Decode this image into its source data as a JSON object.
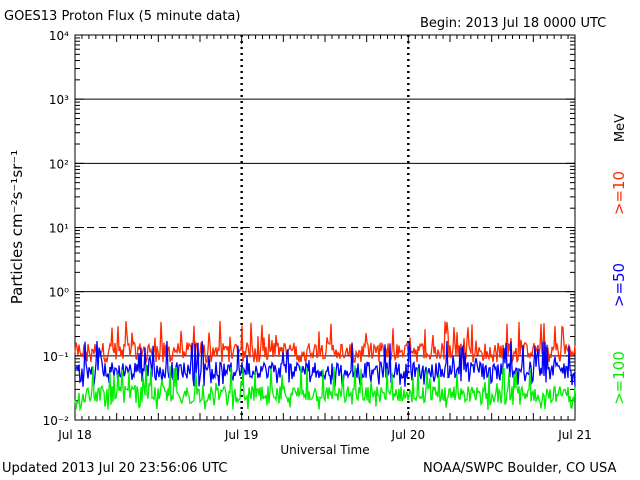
{
  "header": {
    "title": "GOES13 Proton Flux (5 minute data)",
    "begin": "Begin: 2013 Jul 18 0000 UTC"
  },
  "footer": {
    "updated": "Updated 2013 Jul 20 23:56:06 UTC",
    "credit": "NOAA/SWPC Boulder, CO USA"
  },
  "chart_data": {
    "type": "line",
    "title": "GOES13 Proton Flux (5 minute data)",
    "xlabel": "Universal Time",
    "ylabel": "Particles cm⁻²s⁻¹sr⁻¹",
    "y_scale": "log",
    "ylim": [
      0.01,
      10000
    ],
    "x_range_days": [
      0,
      3
    ],
    "x_ticks": [
      "Jul 18",
      "Jul 19",
      "Jul 20",
      "Jul 21"
    ],
    "y_ticks": [
      "10⁻²",
      "10⁻¹",
      "10⁰",
      "10¹",
      "10²",
      "10³",
      "10⁴"
    ],
    "dashed_threshold": 10,
    "energy_unit": "MeV",
    "grid": true,
    "series": [
      {
        "name": ">=10",
        "color": "#ff2a00",
        "typical": 0.12,
        "min": 0.08,
        "max": 0.35
      },
      {
        "name": ">=50",
        "color": "#0000ff",
        "typical": 0.06,
        "min": 0.03,
        "max": 0.17
      },
      {
        "name": ">=100",
        "color": "#00ee00",
        "typical": 0.025,
        "min": 0.013,
        "max": 0.09
      }
    ]
  }
}
